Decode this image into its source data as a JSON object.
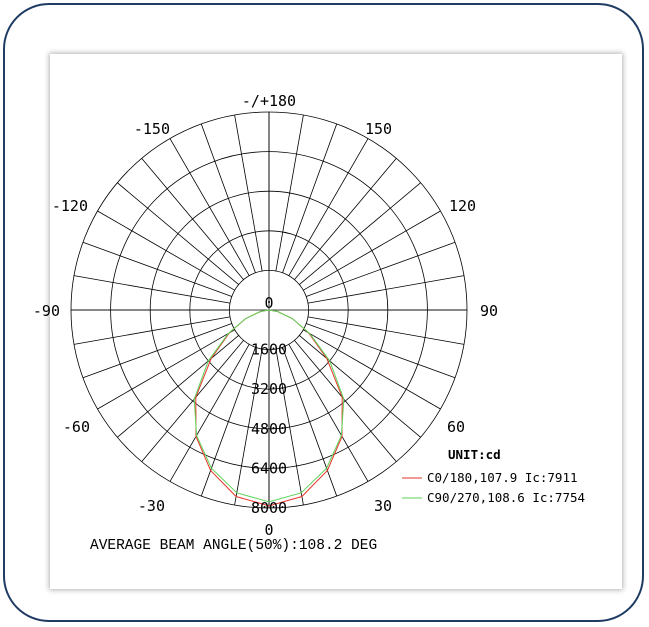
{
  "chart_data": {
    "type": "polar-line",
    "unit_label": "UNIT:cd",
    "angle_labels": [
      "-/+180",
      "150",
      "120",
      "90",
      "60",
      "30",
      "0",
      "-30",
      "-60",
      "-90",
      "-120",
      "-150"
    ],
    "radial_ticks": [
      "0",
      "1600",
      "3200",
      "4800",
      "6400",
      "8000"
    ],
    "radial_max": 8000,
    "angle_step": 10,
    "series": [
      {
        "name": "C0/180,107.9 Ic:7911",
        "color": "#e8362a",
        "angles": [
          -90,
          -80,
          -70,
          -60,
          -50,
          -40,
          -30,
          -20,
          -10,
          0,
          10,
          20,
          30,
          40,
          50,
          60,
          70,
          80,
          90
        ],
        "values": [
          0,
          350,
          1000,
          1850,
          3050,
          4600,
          5900,
          6900,
          7650,
          7911,
          7650,
          6900,
          5900,
          4600,
          3050,
          1850,
          1000,
          350,
          0
        ]
      },
      {
        "name": "C90/270,108.6 Ic:7754",
        "color": "#5cd35a",
        "angles": [
          -90,
          -80,
          -70,
          -60,
          -50,
          -40,
          -30,
          -20,
          -10,
          0,
          10,
          20,
          30,
          40,
          50,
          60,
          70,
          80,
          90
        ],
        "values": [
          0,
          350,
          1000,
          1900,
          3200,
          4700,
          5850,
          6800,
          7500,
          7754,
          7500,
          6800,
          5850,
          4700,
          3200,
          1900,
          1000,
          350,
          0
        ]
      }
    ],
    "caption": "AVERAGE BEAM ANGLE(50%):108.2 DEG",
    "grid": true
  }
}
